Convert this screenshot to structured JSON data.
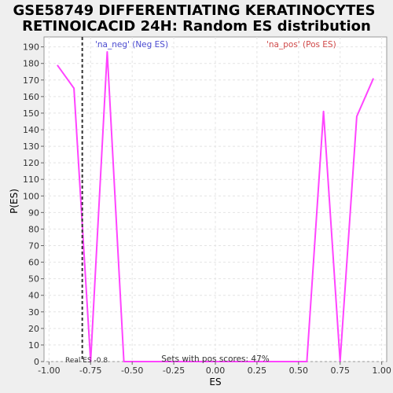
{
  "chart_data": {
    "type": "line",
    "title_lines": [
      "GSE58749 DIFFERENTIATING KERATINOCYTES",
      "RETINOICACID 24H: Random ES distribution"
    ],
    "xlabel": "ES",
    "ylabel": "P(ES)",
    "xlim": [
      -1.03,
      1.03
    ],
    "ylim": [
      0,
      196
    ],
    "x_ticks": [
      -1.0,
      -0.75,
      -0.5,
      -0.25,
      0.0,
      0.25,
      0.5,
      0.75,
      1.0
    ],
    "x_tick_labels": [
      "-1.00",
      "-0.75",
      "-0.50",
      "-0.25",
      "0.00",
      "0.25",
      "0.50",
      "0.75",
      "1.00"
    ],
    "y_ticks": [
      0,
      10,
      20,
      30,
      40,
      50,
      60,
      70,
      80,
      90,
      100,
      110,
      120,
      130,
      140,
      150,
      160,
      170,
      180,
      190
    ],
    "y_tick_labels": [
      "0",
      "10",
      "20",
      "30",
      "40",
      "50",
      "60",
      "70",
      "80",
      "90",
      "100",
      "110",
      "120",
      "130",
      "140",
      "150",
      "160",
      "170",
      "180",
      "190"
    ],
    "grid": true,
    "series": [
      {
        "color": "#ff44ff",
        "x": [
          -0.95,
          -0.85,
          -0.75,
          -0.65,
          -0.55,
          -0.45,
          -0.35,
          -0.25,
          -0.15,
          -0.05,
          0.05,
          0.15,
          0.25,
          0.35,
          0.45,
          0.55,
          0.65,
          0.75,
          0.85,
          0.95
        ],
        "y": [
          179,
          165,
          0,
          187,
          0,
          0,
          0,
          0,
          0,
          0,
          0,
          0,
          0,
          0,
          0,
          0,
          151,
          0,
          148,
          171
        ]
      }
    ],
    "real_es": {
      "x": -0.8,
      "label": "Real ES -0.8"
    },
    "annotations": {
      "neg": "'na_neg' (Neg ES)",
      "pos": "'na_pos' (Pos ES)",
      "pos_scores": "Sets with pos scores: 47%"
    }
  }
}
